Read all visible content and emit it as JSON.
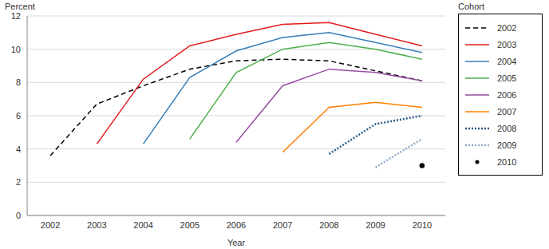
{
  "chart_data": {
    "type": "line",
    "x_label": "Year",
    "y_label": "Percent",
    "legend_title": "Cohort",
    "legend": "right",
    "grid": true,
    "x": [
      2002,
      2003,
      2004,
      2005,
      2006,
      2007,
      2008,
      2009,
      2010
    ],
    "xlim": [
      2001.5,
      2010.5
    ],
    "xticks": [
      2002,
      2003,
      2004,
      2005,
      2006,
      2007,
      2008,
      2009,
      2010
    ],
    "ylim": [
      0,
      12
    ],
    "yticks": [
      0,
      2,
      4,
      6,
      8,
      10,
      12
    ],
    "series": [
      {
        "name": "2002",
        "color": "#000000",
        "line_style": "dashed",
        "marker": "none",
        "values": [
          3.6,
          6.7,
          7.8,
          8.8,
          9.3,
          9.4,
          9.3,
          8.7,
          8.1
        ]
      },
      {
        "name": "2003",
        "color": "#e41a1c",
        "line_style": "solid",
        "marker": "none",
        "values": [
          null,
          4.3,
          8.2,
          10.2,
          10.9,
          11.5,
          11.6,
          10.9,
          10.2
        ]
      },
      {
        "name": "2004",
        "color": "#377eb8",
        "line_style": "solid",
        "marker": "none",
        "values": [
          null,
          null,
          4.3,
          8.3,
          9.9,
          10.7,
          11.0,
          10.4,
          9.8
        ]
      },
      {
        "name": "2005",
        "color": "#4daf4a",
        "line_style": "solid",
        "marker": "none",
        "values": [
          null,
          null,
          null,
          4.6,
          8.6,
          10.0,
          10.4,
          10.0,
          9.4
        ]
      },
      {
        "name": "2006",
        "color": "#984ea3",
        "line_style": "solid",
        "marker": "none",
        "values": [
          null,
          null,
          null,
          null,
          4.4,
          7.8,
          8.8,
          8.6,
          8.1
        ]
      },
      {
        "name": "2007",
        "color": "#ff7f00",
        "line_style": "solid",
        "marker": "none",
        "values": [
          null,
          null,
          null,
          null,
          null,
          3.8,
          6.5,
          6.8,
          6.5
        ]
      },
      {
        "name": "2008",
        "color": "#2b5c8a",
        "line_style": "dotted",
        "marker": "none",
        "values": [
          null,
          null,
          null,
          null,
          null,
          null,
          3.7,
          5.5,
          6.0
        ]
      },
      {
        "name": "2009",
        "color": "#8fa8c8",
        "line_style": "dotted",
        "marker": "none",
        "values": [
          null,
          null,
          null,
          null,
          null,
          null,
          null,
          2.9,
          4.6
        ]
      },
      {
        "name": "2010",
        "color": "#000000",
        "type": "scatter",
        "marker": "circle",
        "values": [
          null,
          null,
          null,
          null,
          null,
          null,
          null,
          null,
          3.0
        ]
      }
    ]
  }
}
